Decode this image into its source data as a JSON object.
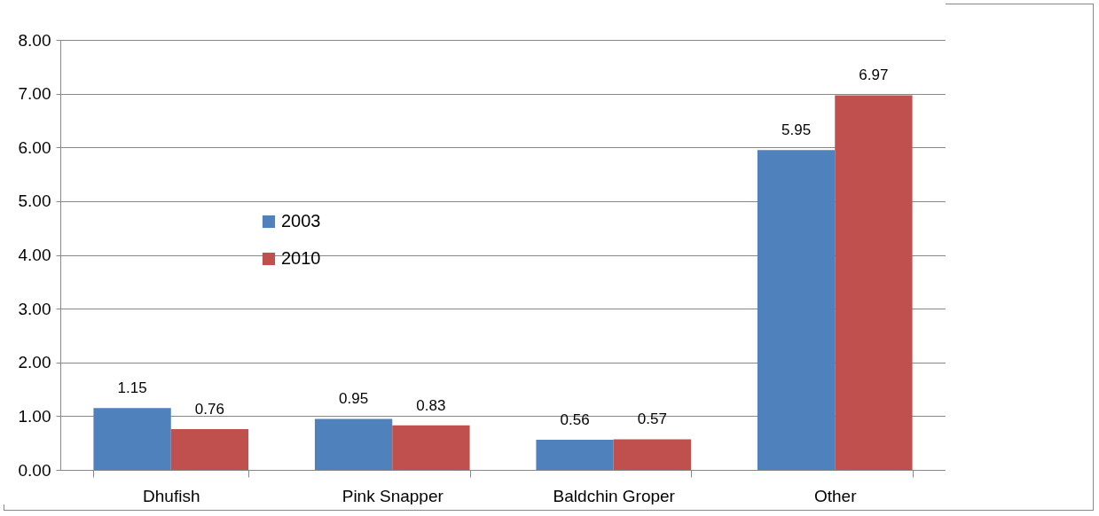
{
  "chart_data": {
    "type": "bar",
    "categories": [
      "Dhufish",
      "Pink Snapper",
      "Baldchin Groper",
      "Other"
    ],
    "series": [
      {
        "name": "2003",
        "color": "#4f81bd",
        "values": [
          1.15,
          0.95,
          0.56,
          5.95
        ]
      },
      {
        "name": "2010",
        "color": "#c0504d",
        "values": [
          0.76,
          0.83,
          0.57,
          6.97
        ]
      }
    ],
    "ylim": [
      0,
      8
    ],
    "yticks": [
      {
        "value": 0,
        "label": "0.00"
      },
      {
        "value": 1,
        "label": "1.00"
      },
      {
        "value": 2,
        "label": "2.00"
      },
      {
        "value": 3,
        "label": "3.00"
      },
      {
        "value": 4,
        "label": "4.00"
      },
      {
        "value": 5,
        "label": "5.00"
      },
      {
        "value": 6,
        "label": "6.00"
      },
      {
        "value": 7,
        "label": "7.00"
      },
      {
        "value": 8,
        "label": "8.00"
      }
    ],
    "grid": "y",
    "legend": "left",
    "data_labels": true
  }
}
